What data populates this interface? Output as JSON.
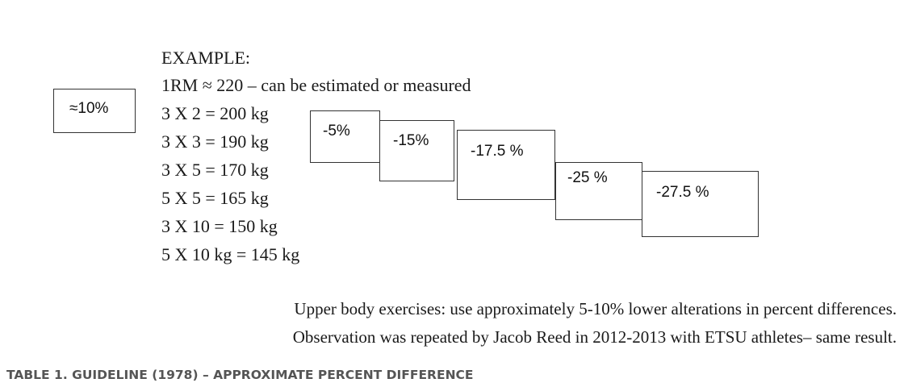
{
  "example": {
    "heading": "EXAMPLE:",
    "lines": [
      "1RM ≈ 220 – can be estimated or measured",
      "3 X 2 = 200 kg",
      "3 X 3 = 190 kg",
      "3 X 5 = 170 kg",
      "5 X 5 = 165 kg",
      "3 X 10 = 150 kg",
      "5 X 10 kg = 145 kg"
    ]
  },
  "boxes": [
    "≈10%",
    "-5%",
    "-15%",
    "-17.5 %",
    "-25 %",
    "-27.5 %"
  ],
  "notes": [
    "Upper body exercises: use approximately 5-10% lower alterations in percent differences.",
    "Observation was repeated by Jacob Reed in 2012-2013 with ETSU athletes– same result."
  ],
  "caption": "TABLE 1. GUIDELINE (1978) – APPROXIMATE PERCENT DIFFERENCE"
}
